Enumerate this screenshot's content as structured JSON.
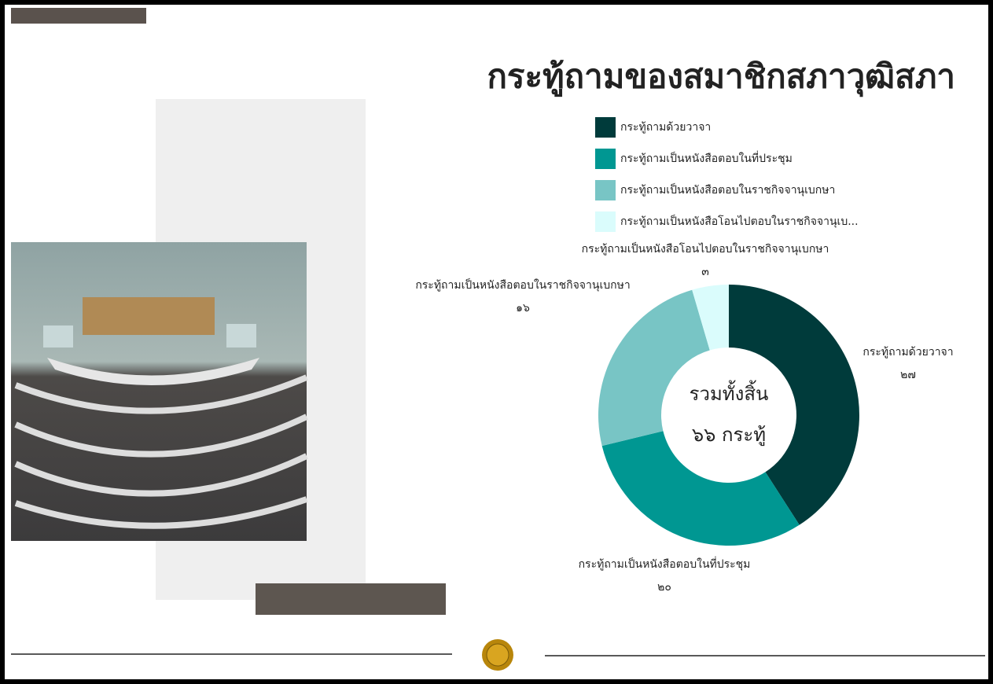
{
  "chart_data": {
    "type": "donut",
    "title": "กระทู้ถามของสมาชิกสภาวุฒิสภา",
    "categories": [
      "กระทู้ถามด้วยวาจา",
      "กระทู้ถามเป็นหนังสือตอบในที่ประชุม",
      "กระทู้ถามเป็นหนังสือตอบในราชกิจจานุเบกษา",
      "กระทู้ถามเป็นหนังสือโอนไปตอบในราชกิจจานุเบกษา"
    ],
    "legend_labels": [
      "กระทู้ถามด้วยวาจา",
      "กระทู้ถามเป็นหนังสือตอบในที่ประชุม",
      "กระทู้ถามเป็นหนังสือตอบในราชกิจจานุเบกษา",
      "กระทู้ถามเป็นหนังสือโอนไปตอบในราชกิจจานุเบ..."
    ],
    "values": [
      27,
      20,
      16,
      3
    ],
    "value_labels": [
      "๒๗",
      "๒๐",
      "๑๖",
      "๓"
    ],
    "colors": [
      "#003b3b",
      "#009792",
      "#78c5c5",
      "#dafcfc"
    ],
    "center_text": [
      "รวมทั้งสิ้น",
      "๖๖ กระทู้"
    ]
  }
}
